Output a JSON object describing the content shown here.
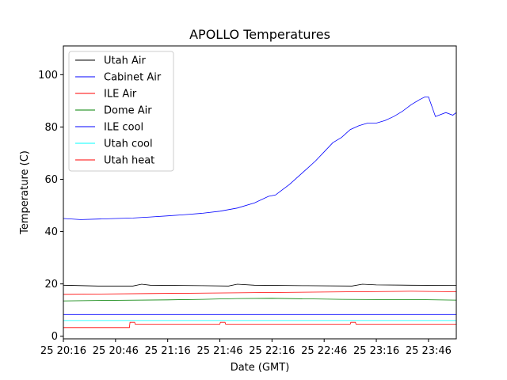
{
  "chart_data": {
    "type": "line",
    "title": "APOLLO Temperatures",
    "xlabel": "Date (GMT)",
    "ylabel": "Temperature (C)",
    "xlim_minutes": [
      0,
      226
    ],
    "ylim": [
      -1,
      111
    ],
    "x_ticks": [
      {
        "at": 0,
        "label": "25 20:16"
      },
      {
        "at": 30,
        "label": "25 20:46"
      },
      {
        "at": 60,
        "label": "25 21:16"
      },
      {
        "at": 90,
        "label": "25 21:46"
      },
      {
        "at": 120,
        "label": "25 22:16"
      },
      {
        "at": 150,
        "label": "25 22:46"
      },
      {
        "at": 180,
        "label": "25 23:16"
      },
      {
        "at": 210,
        "label": "25 23:46"
      }
    ],
    "y_ticks": [
      {
        "at": 0,
        "label": "0"
      },
      {
        "at": 20,
        "label": "20"
      },
      {
        "at": 40,
        "label": "40"
      },
      {
        "at": 60,
        "label": "60"
      },
      {
        "at": 80,
        "label": "80"
      },
      {
        "at": 100,
        "label": "100"
      }
    ],
    "legend_position": "top-left",
    "series": [
      {
        "name": "Utah Air",
        "color": "#000000",
        "x": [
          0,
          20,
          40,
          45,
          50,
          80,
          95,
          100,
          110,
          140,
          166,
          172,
          180,
          200,
          226
        ],
        "y": [
          19.5,
          19.2,
          19.2,
          19.9,
          19.5,
          19.3,
          19.2,
          19.9,
          19.5,
          19.3,
          19.2,
          19.9,
          19.6,
          19.5,
          19.4
        ]
      },
      {
        "name": "Cabinet Air",
        "color": "#0000ff",
        "x": [
          0,
          226
        ],
        "y": [
          8.3,
          8.3
        ]
      },
      {
        "name": "ILE Air",
        "color": "#ff0000",
        "x": [
          0,
          50,
          100,
          150,
          200,
          226
        ],
        "y": [
          16.0,
          16.3,
          16.6,
          16.9,
          17.2,
          17.0
        ]
      },
      {
        "name": "Dome Air",
        "color": "#008000",
        "x": [
          0,
          30,
          60,
          80,
          100,
          120,
          140,
          160,
          180,
          200,
          226
        ],
        "y": [
          13.5,
          13.7,
          13.9,
          14.1,
          14.4,
          14.5,
          14.3,
          14.1,
          14.0,
          14.0,
          13.8
        ]
      },
      {
        "name": "ILE cool",
        "color": "#0000ff",
        "x": [
          0,
          10,
          20,
          30,
          40,
          50,
          60,
          70,
          80,
          90,
          100,
          110,
          118,
          122,
          125,
          130,
          135,
          140,
          145,
          150,
          155,
          160,
          165,
          170,
          175,
          180,
          185,
          190,
          195,
          200,
          205,
          208,
          210,
          214,
          216,
          220,
          224,
          226
        ],
        "y": [
          45.0,
          44.6,
          44.8,
          45.0,
          45.2,
          45.6,
          46.0,
          46.5,
          47.0,
          47.8,
          49.0,
          51.0,
          53.5,
          54.0,
          55.5,
          58.0,
          61.0,
          64.0,
          67.0,
          70.5,
          74.0,
          76.0,
          79.0,
          80.5,
          81.5,
          81.5,
          82.5,
          84.0,
          86.0,
          88.5,
          90.5,
          91.5,
          91.5,
          84.0,
          84.5,
          85.5,
          84.5,
          85.5
        ]
      },
      {
        "name": "Utah cool",
        "color": "#00ffff",
        "x": [
          0,
          226
        ],
        "y": [
          6.0,
          6.0
        ]
      },
      {
        "name": "Utah heat",
        "color": "#ff0000",
        "x": [
          0,
          38,
          38.3,
          41,
          41.3,
          90,
          90.3,
          93,
          93.3,
          165,
          165.3,
          168,
          168.3,
          226
        ],
        "y": [
          3.3,
          3.3,
          5.3,
          5.3,
          4.6,
          4.6,
          5.3,
          5.3,
          4.6,
          4.6,
          5.3,
          5.3,
          4.6,
          4.6
        ]
      }
    ]
  }
}
